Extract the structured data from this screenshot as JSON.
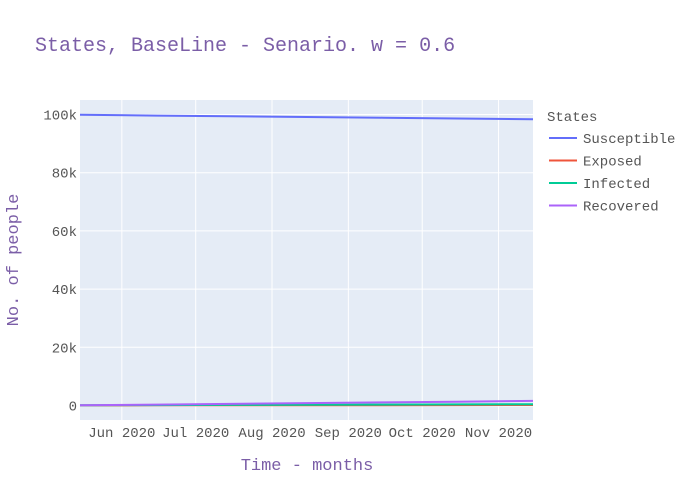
{
  "chart_data": {
    "type": "line",
    "title": "States, BaseLine - Senario. w = 0.6",
    "xlabel": "Time - months",
    "ylabel": "No. of people",
    "x_range": [
      "2020-05-15",
      "2020-11-15"
    ],
    "ylim": [
      -5000,
      105000
    ],
    "x_ticks": [
      {
        "date": "2020-06-01",
        "label": "Jun 2020"
      },
      {
        "date": "2020-07-01",
        "label": "Jul 2020"
      },
      {
        "date": "2020-08-01",
        "label": "Aug 2020"
      },
      {
        "date": "2020-09-01",
        "label": "Sep 2020"
      },
      {
        "date": "2020-10-01",
        "label": "Oct 2020"
      },
      {
        "date": "2020-11-01",
        "label": "Nov 2020"
      }
    ],
    "y_ticks": [
      {
        "value": 0,
        "label": "0"
      },
      {
        "value": 20000,
        "label": "20k"
      },
      {
        "value": 40000,
        "label": "40k"
      },
      {
        "value": 60000,
        "label": "60k"
      },
      {
        "value": 80000,
        "label": "80k"
      },
      {
        "value": 100000,
        "label": "100k"
      }
    ],
    "grid": true,
    "legend": {
      "title": "States",
      "placement": "right"
    },
    "x": [
      "2020-05-15",
      "2020-06-15",
      "2020-07-15",
      "2020-08-15",
      "2020-09-15",
      "2020-10-15",
      "2020-11-15"
    ],
    "series": [
      {
        "name": "Susceptible",
        "color": "#636efa",
        "values": [
          99900,
          99650,
          99400,
          99150,
          98900,
          98650,
          98400
        ]
      },
      {
        "name": "Exposed",
        "color": "#ef553b",
        "values": [
          20,
          40,
          60,
          80,
          100,
          120,
          150
        ]
      },
      {
        "name": "Infected",
        "color": "#00cc96",
        "values": [
          60,
          120,
          180,
          240,
          300,
          360,
          420
        ]
      },
      {
        "name": "Recovered",
        "color": "#ab63fa",
        "values": [
          100,
          300,
          550,
          800,
          1050,
          1300,
          1550
        ]
      }
    ]
  }
}
